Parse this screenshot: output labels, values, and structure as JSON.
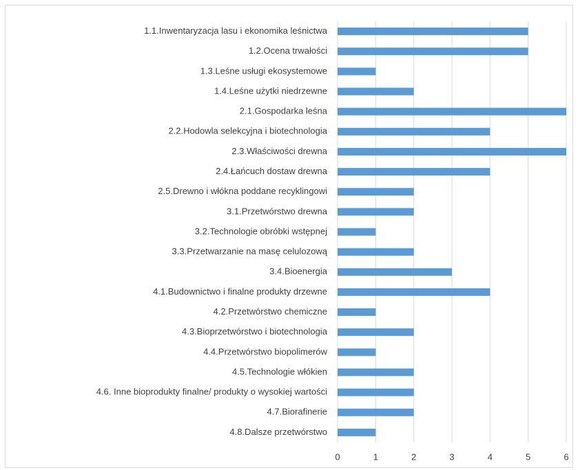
{
  "chart_data": {
    "type": "barh",
    "categories": [
      "1.1.Inwentaryzacja lasu i ekonomika leśnictwa",
      "1.2.Ocena trwałości",
      "1.3.Leśne usługi ekosystemowe",
      "1.4.Leśne użytki niedrzewne",
      "2.1.Gospodarka leśna",
      "2.2.Hodowla selekcyjna i biotechnologia",
      "2.3.Właściwości drewna",
      "2.4.Łańcuch dostaw drewna",
      "2.5.Drewno i włókna poddane recyklingowi",
      "3.1.Przetwórstwo drewna",
      "3.2.Technologie obróbki wstępnej",
      "3.3.Przetwarzanie na masę celulozową",
      "3.4.Bioenergia",
      "4.1.Budownictwo i finalne produkty drzewne",
      "4.2.Przetwórstwo chemiczne",
      "4.3.Bioprzetwórstwo i biotechnologia",
      "4.4.Przetwórstwo biopolimerów",
      "4.5.Technologie włókien",
      "4.6. Inne bioprodukty finalne/ produkty o wysokiej wartości",
      "4.7.Biorafinerie",
      "4.8.Dalsze przetwórstwo"
    ],
    "values": [
      5,
      5,
      1,
      2,
      6,
      4,
      6,
      4,
      2,
      2,
      1,
      2,
      3,
      4,
      1,
      2,
      1,
      2,
      2,
      2,
      1
    ],
    "color": "#5b9bd5",
    "xlim": [
      0,
      6
    ],
    "xticks": [
      0,
      1,
      2,
      3,
      4,
      5,
      6
    ],
    "grid": true
  }
}
